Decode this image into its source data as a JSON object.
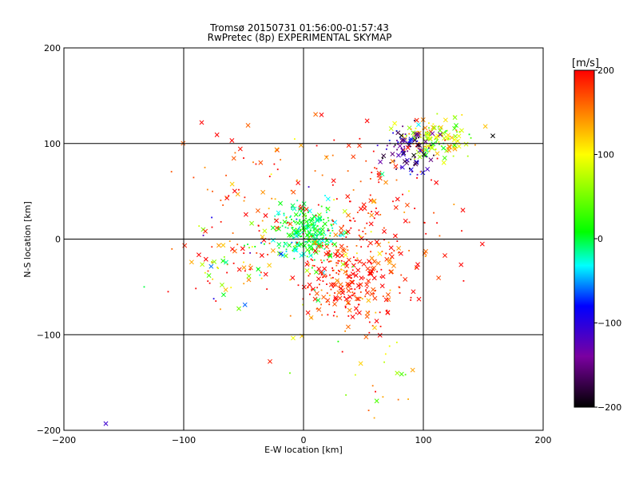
{
  "chart_data": {
    "type": "scatter",
    "title": "Tromsø 20150731 01:56:00-01:57:43",
    "subtitle": "RwPretec (8p) EXPERIMENTAL SKYMAP",
    "xlabel": "E-W location [km]",
    "ylabel": "N-S location [km]",
    "xlim": [
      -200,
      200
    ],
    "ylim": [
      -200,
      200
    ],
    "xticks": [
      -200,
      -100,
      0,
      100,
      200
    ],
    "yticks": [
      -200,
      -100,
      0,
      100,
      200
    ],
    "grid": true,
    "colorbar": {
      "label": "[m/s]",
      "range": [
        -200,
        200
      ],
      "ticks": [
        -200,
        -100,
        0,
        100,
        200
      ],
      "position": "right",
      "stops": [
        "#000000",
        "#7a00a0",
        "#0000ff",
        "#00ffff",
        "#00ff00",
        "#ffff00",
        "#ff0000"
      ]
    },
    "markers": [
      "x",
      "dot"
    ],
    "clusters": [
      {
        "cx": 3,
        "cy": 8,
        "sx": 12,
        "sy": 14,
        "n": 260,
        "v": 0,
        "vs": 25
      },
      {
        "cx": 35,
        "cy": -45,
        "sx": 20,
        "sy": 25,
        "n": 220,
        "v": 190,
        "vs": 25
      },
      {
        "cx": 110,
        "cy": 105,
        "sx": 15,
        "sy": 10,
        "n": 140,
        "v": 80,
        "vs": 45
      },
      {
        "cx": 88,
        "cy": 95,
        "sx": 12,
        "sy": 12,
        "n": 90,
        "v": -145,
        "vs": 40
      },
      {
        "cx": 65,
        "cy": 20,
        "sx": 30,
        "sy": 45,
        "n": 130,
        "v": 190,
        "vs": 30
      },
      {
        "cx": -65,
        "cy": -25,
        "sx": 15,
        "sy": 20,
        "n": 60,
        "v": 110,
        "vs": 100
      },
      {
        "cx": 10,
        "cy": -20,
        "sx": 40,
        "sy": 40,
        "n": 100,
        "v": 150,
        "vs": 90
      },
      {
        "cx": -50,
        "cy": 50,
        "sx": 30,
        "sy": 40,
        "n": 60,
        "v": 170,
        "vs": 40
      },
      {
        "cx": 65,
        "cy": -130,
        "sx": 15,
        "sy": 30,
        "n": 25,
        "v": 120,
        "vs": 60
      }
    ],
    "extra_points": [
      {
        "x": -165,
        "y": -193,
        "v": -110,
        "m": "x"
      },
      {
        "x": -133,
        "y": -50,
        "v": 0,
        "m": "dot"
      },
      {
        "x": -113,
        "y": -55,
        "v": 200,
        "m": "dot"
      },
      {
        "x": 158,
        "y": 108,
        "v": -200,
        "m": "x"
      },
      {
        "x": -85,
        "y": 122,
        "v": 200,
        "m": "x"
      },
      {
        "x": 15,
        "y": 130,
        "v": 200,
        "m": "x"
      },
      {
        "x": -28,
        "y": -128,
        "v": 190,
        "m": "x"
      }
    ]
  }
}
